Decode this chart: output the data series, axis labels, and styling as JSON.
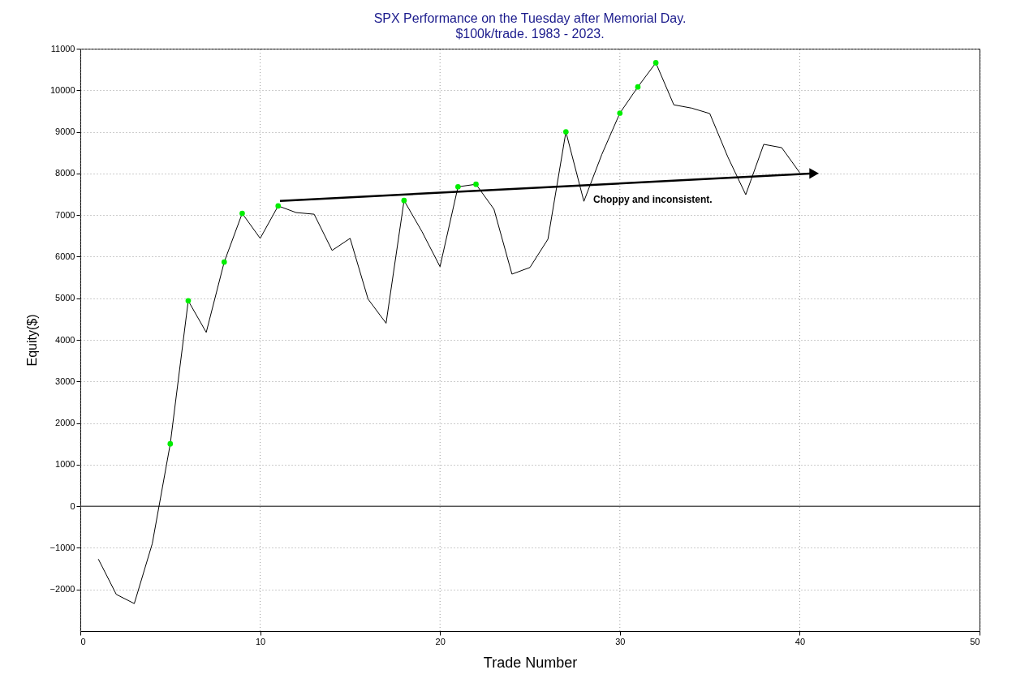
{
  "chart_data": {
    "type": "line",
    "title": "SPX Performance on the Tuesday after Memorial Day.",
    "subtitle": "$100k/trade. 1983 - 2023.",
    "xlabel": "Trade Number",
    "ylabel": "Equity($)",
    "x": [
      1,
      2,
      3,
      4,
      5,
      6,
      7,
      8,
      9,
      10,
      11,
      12,
      13,
      14,
      15,
      16,
      17,
      18,
      19,
      20,
      21,
      22,
      23,
      24,
      25,
      26,
      27,
      28,
      29,
      30,
      31,
      32,
      33,
      34,
      35,
      36,
      37,
      38,
      39,
      40
    ],
    "series": [
      {
        "color": "#000000",
        "marker": "none",
        "values": [
          -1270,
          -2120,
          -2340,
          -900,
          1500,
          4940,
          4180,
          5870,
          7040,
          6440,
          7220,
          7060,
          7020,
          6150,
          6440,
          4980,
          4400,
          7350,
          6600,
          5760,
          7680,
          7740,
          7140,
          5580,
          5740,
          6420,
          9000,
          7330,
          8460,
          9450,
          10080,
          10660,
          9650,
          9570,
          9440,
          8400,
          7490,
          8700,
          8620,
          8020
        ]
      },
      {
        "type": "scatter",
        "color": "#00ee00",
        "marker": "circle",
        "x": [
          5,
          6,
          8,
          9,
          11,
          18,
          21,
          22,
          27,
          30,
          31,
          32
        ],
        "values": [
          1500,
          4940,
          5870,
          7040,
          7220,
          7350,
          7680,
          7740,
          9000,
          9450,
          10080,
          10660
        ]
      },
      {
        "type": "line",
        "color": "#000000",
        "marker": "triangle",
        "x": [
          11.1,
          40.8
        ],
        "values": [
          7340,
          8000
        ]
      }
    ],
    "annotations": [
      "Choppy and inconsistent."
    ],
    "ref_lines": [
      {
        "axis": "y",
        "value": 0,
        "color": "#555555"
      }
    ],
    "xlim": [
      0,
      50
    ],
    "xticks": [
      0,
      10,
      20,
      30,
      40,
      50
    ],
    "ylim": [
      -3000,
      11000
    ],
    "yticks": [
      -2000,
      -1000,
      0,
      1000,
      2000,
      3000,
      4000,
      5000,
      6000,
      7000,
      8000,
      9000,
      10000,
      11000
    ],
    "grid": true,
    "line_style": "solid"
  }
}
